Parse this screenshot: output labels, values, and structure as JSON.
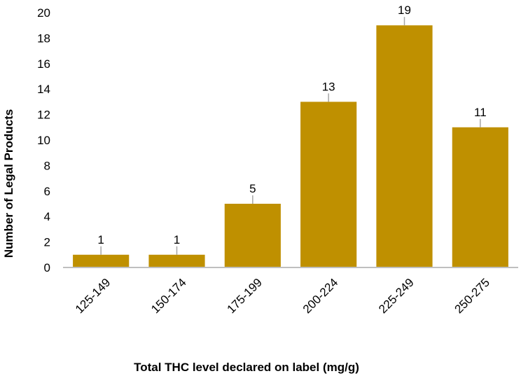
{
  "chart_data": {
    "type": "bar",
    "title": "",
    "xlabel": "Total THC level declared on label (mg/g)",
    "ylabel": "Number of Legal Products",
    "categories": [
      "125-149",
      "150-174",
      "175-199",
      "200-224",
      "225-249",
      "250-275"
    ],
    "values": [
      1,
      1,
      5,
      13,
      19,
      11
    ],
    "data_labels": [
      "1",
      "1",
      "5",
      "13",
      "19",
      "11"
    ],
    "ylim": [
      0,
      20
    ],
    "yticks": [
      0,
      2,
      4,
      6,
      8,
      10,
      12,
      14,
      16,
      18,
      20
    ],
    "ytick_labels": [
      "0",
      "2",
      "4",
      "6",
      "8",
      "10",
      "12",
      "14",
      "16",
      "18",
      "20"
    ],
    "grid": false,
    "legend": "none",
    "bar_color": "#BF9000",
    "axis_color": "#BFBFBF",
    "leader_line_color": "#A6A6A6"
  }
}
